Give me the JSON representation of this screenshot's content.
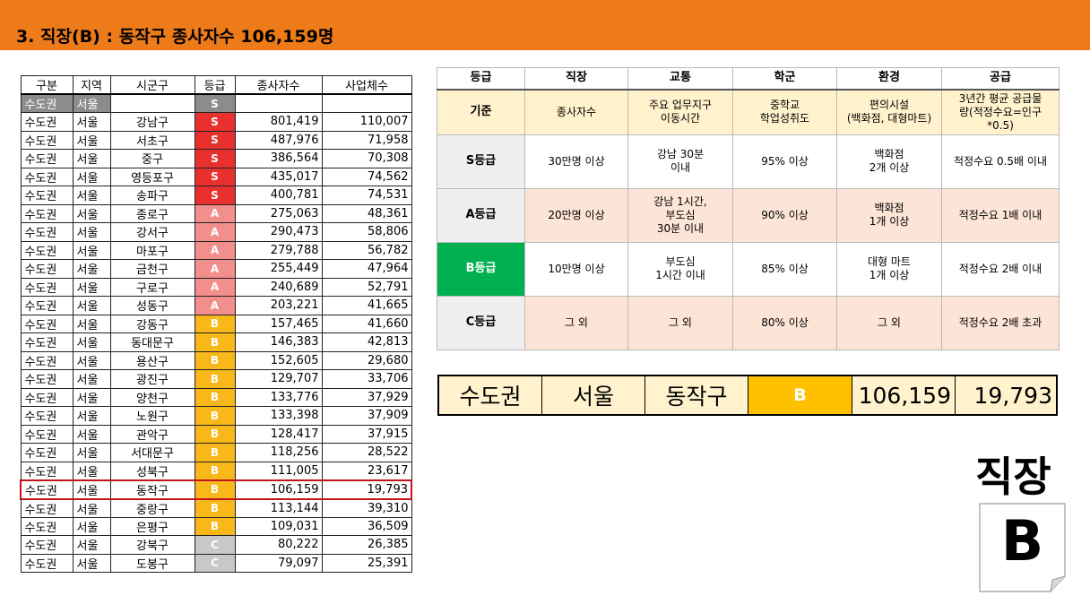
{
  "title": "3. 직장(B) : 동작구 종사자수 106,159명",
  "left_table": {
    "headers": [
      "구분",
      "지역",
      "시군구",
      "등급",
      "종사자수",
      "사업체수"
    ],
    "header_row": {
      "region_group": "수도권",
      "region": "서울",
      "district": "",
      "grade": "S",
      "workers": "",
      "businesses": ""
    },
    "rows": [
      {
        "region_group": "수도권",
        "region": "서울",
        "district": "강남구",
        "grade": "S",
        "workers": "801,419",
        "businesses": "110,007"
      },
      {
        "region_group": "수도권",
        "region": "서울",
        "district": "서초구",
        "grade": "S",
        "workers": "487,976",
        "businesses": "71,958"
      },
      {
        "region_group": "수도권",
        "region": "서울",
        "district": "중구",
        "grade": "S",
        "workers": "386,564",
        "businesses": "70,308"
      },
      {
        "region_group": "수도권",
        "region": "서울",
        "district": "영등포구",
        "grade": "S",
        "workers": "435,017",
        "businesses": "74,562"
      },
      {
        "region_group": "수도권",
        "region": "서울",
        "district": "송파구",
        "grade": "S",
        "workers": "400,781",
        "businesses": "74,531"
      },
      {
        "region_group": "수도권",
        "region": "서울",
        "district": "종로구",
        "grade": "A",
        "workers": "275,063",
        "businesses": "48,361"
      },
      {
        "region_group": "수도권",
        "region": "서울",
        "district": "강서구",
        "grade": "A",
        "workers": "290,473",
        "businesses": "58,806"
      },
      {
        "region_group": "수도권",
        "region": "서울",
        "district": "마포구",
        "grade": "A",
        "workers": "279,788",
        "businesses": "56,782"
      },
      {
        "region_group": "수도권",
        "region": "서울",
        "district": "금천구",
        "grade": "A",
        "workers": "255,449",
        "businesses": "47,964"
      },
      {
        "region_group": "수도권",
        "region": "서울",
        "district": "구로구",
        "grade": "A",
        "workers": "240,689",
        "businesses": "52,791"
      },
      {
        "region_group": "수도권",
        "region": "서울",
        "district": "성동구",
        "grade": "A",
        "workers": "203,221",
        "businesses": "41,665"
      },
      {
        "region_group": "수도권",
        "region": "서울",
        "district": "강동구",
        "grade": "B",
        "workers": "157,465",
        "businesses": "41,660"
      },
      {
        "region_group": "수도권",
        "region": "서울",
        "district": "동대문구",
        "grade": "B",
        "workers": "146,383",
        "businesses": "42,813"
      },
      {
        "region_group": "수도권",
        "region": "서울",
        "district": "용산구",
        "grade": "B",
        "workers": "152,605",
        "businesses": "29,680"
      },
      {
        "region_group": "수도권",
        "region": "서울",
        "district": "광진구",
        "grade": "B",
        "workers": "129,707",
        "businesses": "33,706"
      },
      {
        "region_group": "수도권",
        "region": "서울",
        "district": "양천구",
        "grade": "B",
        "workers": "133,776",
        "businesses": "37,929"
      },
      {
        "region_group": "수도권",
        "region": "서울",
        "district": "노원구",
        "grade": "B",
        "workers": "133,398",
        "businesses": "37,909"
      },
      {
        "region_group": "수도권",
        "region": "서울",
        "district": "관악구",
        "grade": "B",
        "workers": "128,417",
        "businesses": "37,915"
      },
      {
        "region_group": "수도권",
        "region": "서울",
        "district": "서대문구",
        "grade": "B",
        "workers": "118,256",
        "businesses": "28,522"
      },
      {
        "region_group": "수도권",
        "region": "서울",
        "district": "성북구",
        "grade": "B",
        "workers": "111,005",
        "businesses": "23,617"
      },
      {
        "region_group": "수도권",
        "region": "서울",
        "district": "동작구",
        "grade": "B",
        "workers": "106,159",
        "businesses": "19,793",
        "highlighted": true
      },
      {
        "region_group": "수도권",
        "region": "서울",
        "district": "중랑구",
        "grade": "B",
        "workers": "113,144",
        "businesses": "39,310"
      },
      {
        "region_group": "수도권",
        "region": "서울",
        "district": "은평구",
        "grade": "B",
        "workers": "109,031",
        "businesses": "36,509"
      },
      {
        "region_group": "수도권",
        "region": "서울",
        "district": "강북구",
        "grade": "C",
        "workers": "80,222",
        "businesses": "26,385"
      },
      {
        "region_group": "수도권",
        "region": "서울",
        "district": "도봉구",
        "grade": "C",
        "workers": "79,097",
        "businesses": "25,391"
      }
    ]
  },
  "criteria_table": {
    "headers": [
      "등급",
      "직장",
      "교통",
      "학군",
      "환경",
      "공급"
    ],
    "basis": {
      "label": "기준",
      "cells": [
        [
          "종사자수"
        ],
        [
          "주요 업무지구",
          "이동시간"
        ],
        [
          "중학교",
          "학업성취도"
        ],
        [
          "편의시설",
          "(백화점, 대형마트)"
        ],
        [
          "3년간 평균 공급물",
          "량(적정수요=인구",
          "*0.5)"
        ]
      ]
    },
    "rows": [
      {
        "label": "S등급",
        "cls": "gS",
        "cells": [
          [
            "30만명 이상"
          ],
          [
            "강남 30분",
            "이내"
          ],
          [
            "95% 이상"
          ],
          [
            "백화점",
            "2개 이상"
          ],
          [
            "적정수요 0.5배 이내"
          ]
        ]
      },
      {
        "label": "A등급",
        "cls": "gA",
        "cells": [
          [
            "20만명 이상"
          ],
          [
            "강남 1시간,",
            "부도심",
            "30분 이내"
          ],
          [
            "90% 이상"
          ],
          [
            "백화점",
            "1개 이상"
          ],
          [
            "적정수요 1배 이내"
          ]
        ]
      },
      {
        "label": "B등급",
        "cls": "gB",
        "cells": [
          [
            "10만명 이상"
          ],
          [
            "부도심",
            "1시간 이내"
          ],
          [
            "85% 이상"
          ],
          [
            "대형 마트",
            "1개 이상"
          ],
          [
            "적정수요 2배 이내"
          ]
        ]
      },
      {
        "label": "C등급",
        "cls": "gC",
        "cells": [
          [
            "그 외"
          ],
          [
            "그 외"
          ],
          [
            "80% 이상"
          ],
          [
            "그 외"
          ],
          [
            "적정수요 2배 초과"
          ]
        ]
      }
    ]
  },
  "summary": {
    "region_group": "수도권",
    "region": "서울",
    "district": "동작구",
    "grade": "B",
    "workers": "106,159",
    "businesses": "19,793"
  },
  "badge": {
    "label": "직장",
    "grade": "B"
  },
  "colors": {
    "title_bar": "#ee7b1a",
    "grade_S": "#e8312f",
    "grade_A": "#f28e8c",
    "grade_B": "#f8b81a",
    "grade_C": "#c8c8c8",
    "highlight": "#c0141b",
    "b_row_label": "#00b050",
    "summary_bg": "#fff2cc",
    "summary_grade": "#ffc000"
  }
}
